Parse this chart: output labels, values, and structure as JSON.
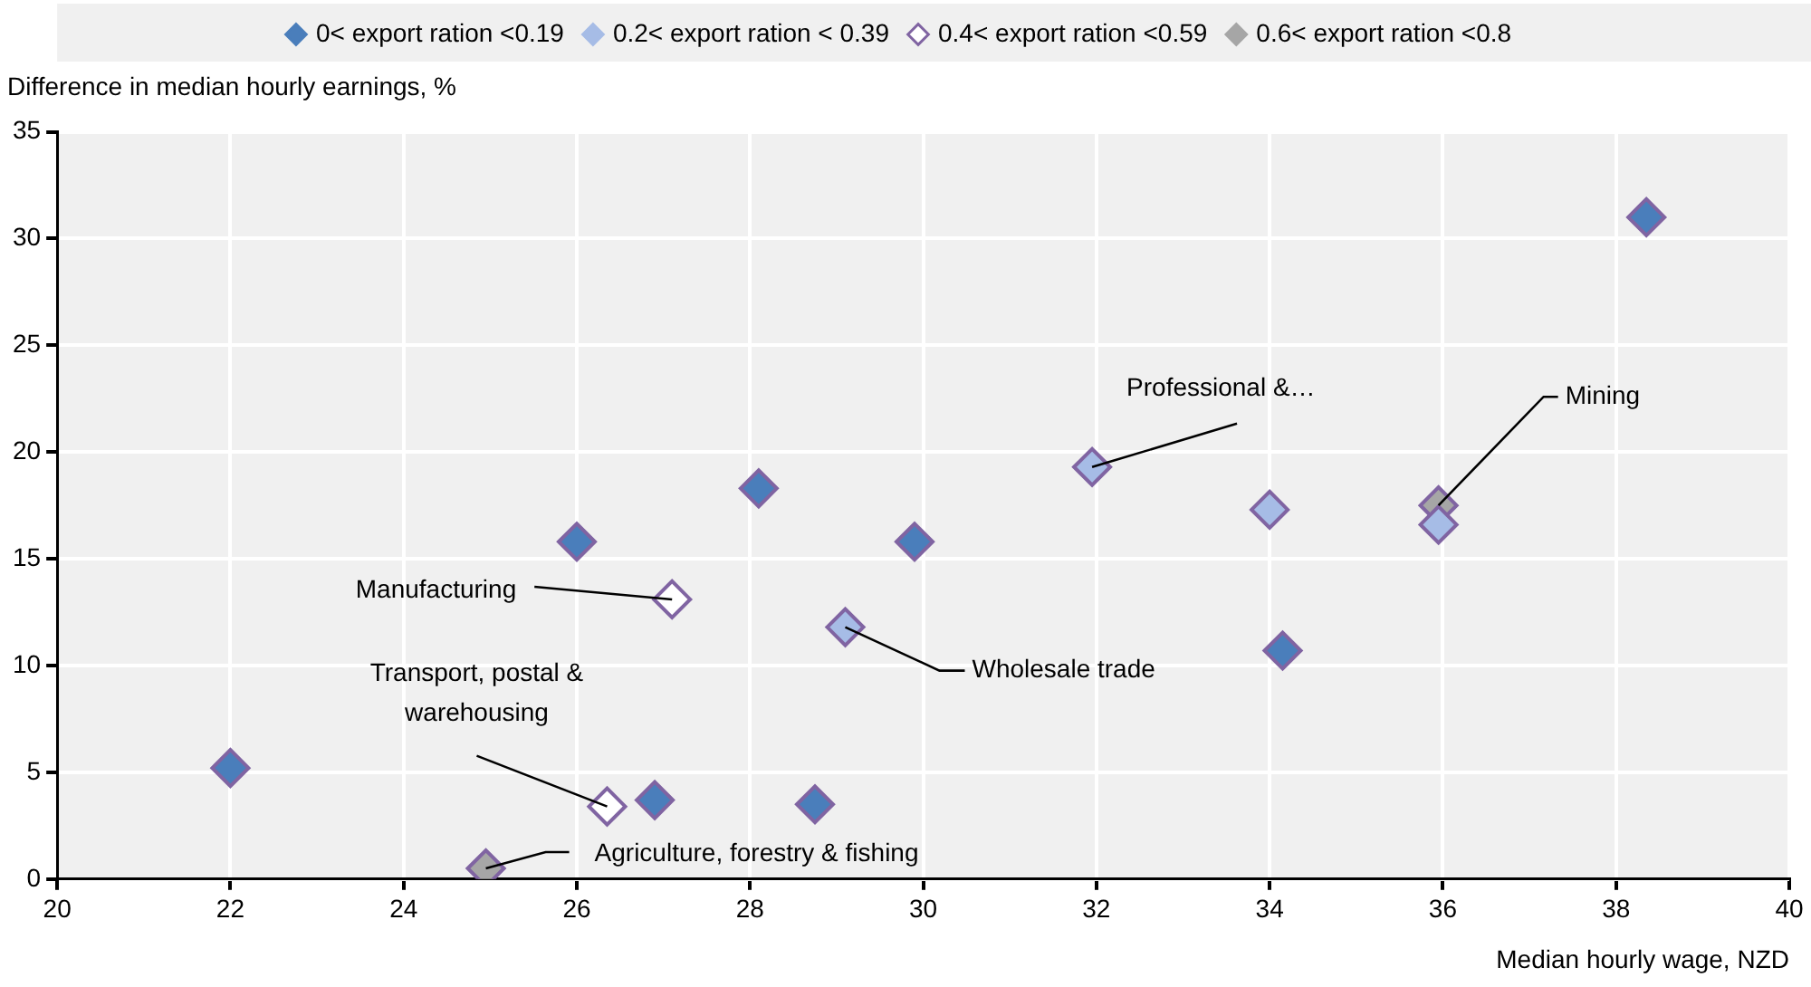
{
  "chart_data": {
    "type": "scatter",
    "ylabel": "Difference in median hourly earnings, %",
    "xlabel": "Median hourly wage, NZD",
    "xlim": [
      20,
      40
    ],
    "xticks": [
      20,
      22,
      24,
      26,
      28,
      30,
      32,
      34,
      36,
      38,
      40
    ],
    "ylim": [
      0,
      35
    ],
    "yticks": [
      0,
      5,
      10,
      15,
      20,
      25,
      30,
      35
    ],
    "grid": true,
    "legend": "top",
    "marker": "diamond",
    "series": [
      {
        "name": "0< export ration <0.19",
        "color": "#4a7ebb",
        "x": [
          22,
          26,
          28.1,
          29.9,
          26.9,
          28.75,
          34.15,
          38.35
        ],
        "values": [
          5.2,
          15.8,
          18.3,
          15.8,
          3.7,
          3.5,
          10.7,
          31
        ]
      },
      {
        "name": "0.2< export ration < 0.39",
        "color": "#a6bce6",
        "x": [
          31.95,
          34,
          35.95,
          29.1
        ],
        "values": [
          19.3,
          17.3,
          16.6,
          11.8
        ]
      },
      {
        "name": "0.4< export ration <0.59",
        "color": "#ffffff",
        "x": [
          27.1,
          26.35
        ],
        "values": [
          13.1,
          3.4
        ]
      },
      {
        "name": "0.6< export ration <0.8",
        "color": "#a6a6a6",
        "x": [
          24.95,
          35.95
        ],
        "values": [
          0.5,
          17.5
        ]
      }
    ],
    "annotations": [
      {
        "text": "Professional &…",
        "x": 31.95,
        "y": 19.3
      },
      {
        "text": "Mining",
        "x": 35.95,
        "y": 17.5
      },
      {
        "text": "Manufacturing",
        "x": 27.1,
        "y": 13.1
      },
      {
        "text": "Wholesale trade",
        "x": 29.1,
        "y": 11.8
      },
      {
        "text": "Transport, postal & warehousing",
        "x": 26.35,
        "y": 3.4
      },
      {
        "text": "Agriculture, forestry & fishing",
        "x": 24.95,
        "y": 0.5
      }
    ]
  }
}
